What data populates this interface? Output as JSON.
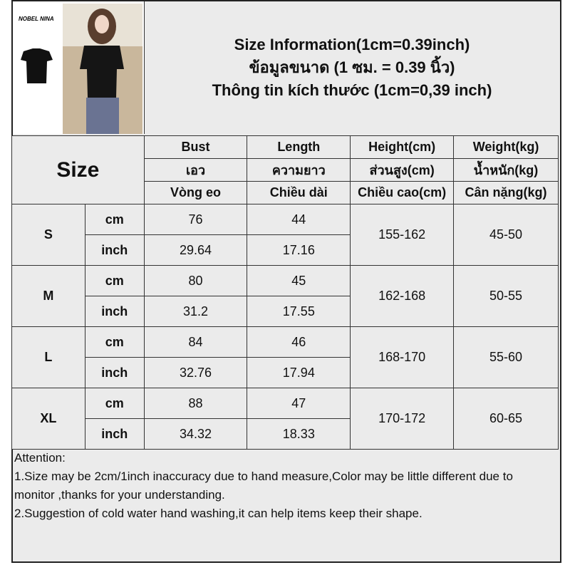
{
  "product_image": {
    "brand": "NOBEL NINA"
  },
  "title": {
    "line1": "Size Information(1cm=0.39inch)",
    "line2": "ข้อมูลขนาด (1 ซม. = 0.39 นิ้ว)",
    "line3": "Thông tin kích thước (1cm=0,39 inch)"
  },
  "table": {
    "size_label": "Size",
    "headers": [
      [
        "Bust",
        "Length",
        "Height(cm)",
        "Weight(kg)"
      ],
      [
        "เอว",
        "ความยาว",
        "ส่วนสูง(cm)",
        "น้ำหนัก(kg)"
      ],
      [
        "Vòng eo",
        "Chiều dài",
        "Chiều cao(cm)",
        "Cân nặng(kg)"
      ]
    ],
    "rows": [
      {
        "size": "S",
        "cm_label": "cm",
        "inch_label": "inch",
        "bust_cm": "76",
        "length_cm": "44",
        "bust_inch": "29.64",
        "length_inch": "17.16",
        "height": "155-162",
        "weight": "45-50"
      },
      {
        "size": "M",
        "cm_label": "cm",
        "inch_label": "inch",
        "bust_cm": "80",
        "length_cm": "45",
        "bust_inch": "31.2",
        "length_inch": "17.55",
        "height": "162-168",
        "weight": "50-55"
      },
      {
        "size": "L",
        "cm_label": "cm",
        "inch_label": "inch",
        "bust_cm": "84",
        "length_cm": "46",
        "bust_inch": "32.76",
        "length_inch": "17.94",
        "height": "168-170",
        "weight": "55-60"
      },
      {
        "size": "XL",
        "cm_label": "cm",
        "inch_label": "inch",
        "bust_cm": "88",
        "length_cm": "47",
        "bust_inch": "34.32",
        "length_inch": "18.33",
        "height": "170-172",
        "weight": "60-65"
      }
    ]
  },
  "attention": {
    "title": "Attention:",
    "line1": "1.Size may be 2cm/1inch inaccuracy due to hand measure,Color may be little different due to monitor ,thanks for your understanding.",
    "line2": "2.Suggestion of cold water hand washing,it can help items keep their shape."
  }
}
